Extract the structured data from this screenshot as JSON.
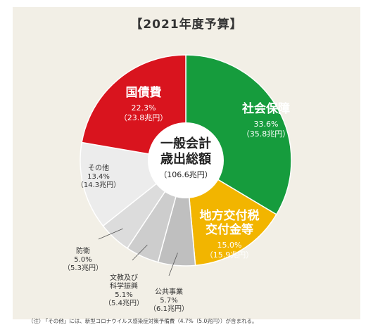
{
  "title": "【2021年度予算】",
  "note": {
    "prefix": "（注）",
    "text": "「その他」には、新型コロナウイルス感染症対策予備費（4.7%（5.0兆円））が含まれる。"
  },
  "colors": {
    "social": "#169c3d",
    "debt": "#d9141e",
    "local": "#f2b500",
    "other_light": "#ececec",
    "gray1": "#dcdcdc",
    "gray2": "#cdcdcd",
    "gray3": "#bfbfbf"
  },
  "chart_data": {
    "type": "pie",
    "title": "【2021年度予算】",
    "center_label": [
      "一般会計",
      "歳出総額",
      "（106.6兆円）"
    ],
    "slices": [
      {
        "label": "社会保障",
        "percent": 33.6,
        "value_text": "33.6%",
        "amount_text": "（35.8兆円）",
        "color": "#169c3d"
      },
      {
        "label": "地方交付税交付金等",
        "label_lines": [
          "地方交付税",
          "交付金等"
        ],
        "percent": 15.0,
        "value_text": "15.0%",
        "amount_text": "（15.9兆円）",
        "color": "#f2b500"
      },
      {
        "label": "公共事業",
        "percent": 5.7,
        "value_text": "5.7%",
        "amount_text": "（6.1兆円）",
        "color": "#bfbfbf"
      },
      {
        "label": "文教及び科学振興",
        "label_lines": [
          "文教及び",
          "科学振興"
        ],
        "percent": 5.1,
        "value_text": "5.1%",
        "amount_text": "（5.4兆円）",
        "color": "#cdcdcd"
      },
      {
        "label": "防衛",
        "percent": 5.0,
        "value_text": "5.0%",
        "amount_text": "（5.3兆円）",
        "color": "#dcdcdc"
      },
      {
        "label": "その他",
        "percent": 13.4,
        "value_text": "13.4%",
        "amount_text": "（14.3兆円）",
        "color": "#ececec"
      },
      {
        "label": "国債費",
        "percent": 22.3,
        "value_text": "22.3%",
        "amount_text": "（23.8兆円）",
        "color": "#d9141e"
      }
    ]
  }
}
